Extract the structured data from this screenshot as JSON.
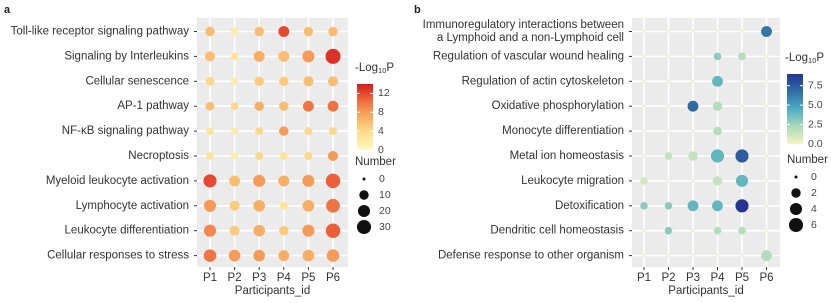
{
  "chart_data": [
    {
      "type": "dot",
      "panel_label": "a",
      "categories": [
        "Toll-like receptor signaling pathway",
        "Signaling by Interleukins",
        "Cellular senescence",
        "AP-1 pathway",
        "NF-κB signaling pathway",
        "Necroptosis",
        "Myeloid leukocyte activation",
        "Lymphocyte activation",
        "Leukocyte differentiation",
        "Cellular responses to stress"
      ],
      "x": [
        "P1",
        "P2",
        "P3",
        "P4",
        "P5",
        "P6"
      ],
      "x_label": "Participants_id",
      "values": [
        [
          6,
          2,
          6,
          12,
          6,
          6
        ],
        [
          6,
          3,
          7,
          6,
          8,
          13
        ],
        [
          4,
          2,
          5,
          5,
          6,
          6
        ],
        [
          6,
          4,
          7,
          6,
          10,
          10
        ],
        [
          3,
          2,
          4,
          8,
          4,
          4
        ],
        [
          3,
          2,
          4,
          3,
          4,
          8
        ],
        [
          12,
          6,
          8,
          7,
          8,
          11
        ],
        [
          8,
          5,
          7,
          3,
          7,
          10
        ],
        [
          9,
          5,
          7,
          5,
          8,
          11
        ],
        [
          10,
          8,
          8,
          7,
          7,
          8
        ]
      ],
      "sizes": [
        [
          10,
          5,
          10,
          15,
          10,
          10
        ],
        [
          12,
          5,
          15,
          15,
          20,
          35
        ],
        [
          8,
          4,
          10,
          10,
          12,
          12
        ],
        [
          8,
          5,
          10,
          10,
          15,
          15
        ],
        [
          5,
          4,
          6,
          10,
          6,
          6
        ],
        [
          5,
          4,
          6,
          5,
          6,
          12
        ],
        [
          25,
          15,
          20,
          15,
          20,
          32
        ],
        [
          20,
          12,
          18,
          6,
          18,
          28
        ],
        [
          20,
          12,
          18,
          10,
          20,
          32
        ],
        [
          22,
          18,
          18,
          15,
          18,
          22
        ]
      ],
      "colorbar_title": [
        "-Log",
        "10",
        "P"
      ],
      "clim": [
        0,
        14
      ],
      "cticks": [
        0,
        4,
        8,
        12
      ],
      "colormap": [
        "#fff9c4",
        "#fde08e",
        "#f9ad62",
        "#ef6b3e",
        "#d7191c"
      ],
      "size_title": "Number",
      "sizelim": [
        0,
        35
      ],
      "size_ticks": [
        0,
        10,
        20,
        30
      ]
    },
    {
      "type": "dot",
      "panel_label": "b",
      "categories": [
        [
          "Immunoregulatory interactions between",
          "a Lymphoid and a non-Lymphoid cell"
        ],
        "Regulation of vascular wound healing",
        "Regulation of actin cytoskeleton",
        "Oxidative phosphorylation",
        "Monocyte differentiation",
        "Metal ion homeostasis",
        "Leukocyte migration",
        "Detoxification",
        "Dendritic cell homeostasis",
        "Defense response to other organism"
      ],
      "x": [
        "P1",
        "P2",
        "P3",
        "P4",
        "P5",
        "P6"
      ],
      "x_label": "Participants_id",
      "values": [
        [
          0,
          0,
          0,
          0,
          0,
          6.5
        ],
        [
          0,
          0,
          0,
          3,
          2,
          0
        ],
        [
          0,
          0,
          0,
          4,
          0,
          0
        ],
        [
          0,
          0,
          7,
          2,
          0,
          0
        ],
        [
          0,
          0,
          0,
          2,
          0,
          0
        ],
        [
          0,
          1.5,
          1.5,
          4,
          7.5,
          0
        ],
        [
          1,
          0,
          0,
          1.5,
          4,
          0
        ],
        [
          3,
          3,
          4,
          4,
          9,
          0
        ],
        [
          0,
          3,
          0,
          2,
          2,
          0
        ],
        [
          0,
          0,
          0,
          0,
          0,
          2
        ]
      ],
      "sizes": [
        [
          0,
          0,
          0,
          0,
          0,
          3
        ],
        [
          0,
          0,
          0,
          1,
          1,
          0
        ],
        [
          0,
          0,
          0,
          3,
          0,
          0
        ],
        [
          0,
          0,
          3,
          2,
          0,
          0
        ],
        [
          0,
          0,
          0,
          1.5,
          0,
          0
        ],
        [
          0,
          1,
          2,
          5,
          5,
          0
        ],
        [
          1,
          0,
          0,
          2,
          4,
          0
        ],
        [
          1,
          1,
          3,
          3,
          5,
          0
        ],
        [
          0,
          1,
          0,
          1,
          1,
          0
        ],
        [
          0,
          0,
          0,
          0,
          0,
          3
        ]
      ],
      "colorbar_title": [
        "-Log",
        "10",
        "P"
      ],
      "clim": [
        0,
        9
      ],
      "cticks": [
        {
          "value": 0,
          "label": "0.0"
        },
        {
          "value": 2.5,
          "label": "2.5"
        },
        {
          "value": 5,
          "label": "5.0"
        },
        {
          "value": 7.5,
          "label": "7.5"
        }
      ],
      "colormap": [
        "#f6f3c2",
        "#a9dbb9",
        "#4eacc0",
        "#2f6fa7",
        "#253494"
      ],
      "size_title": "Number",
      "sizelim": [
        0,
        7
      ],
      "size_ticks": [
        0,
        2,
        4,
        6
      ]
    }
  ]
}
